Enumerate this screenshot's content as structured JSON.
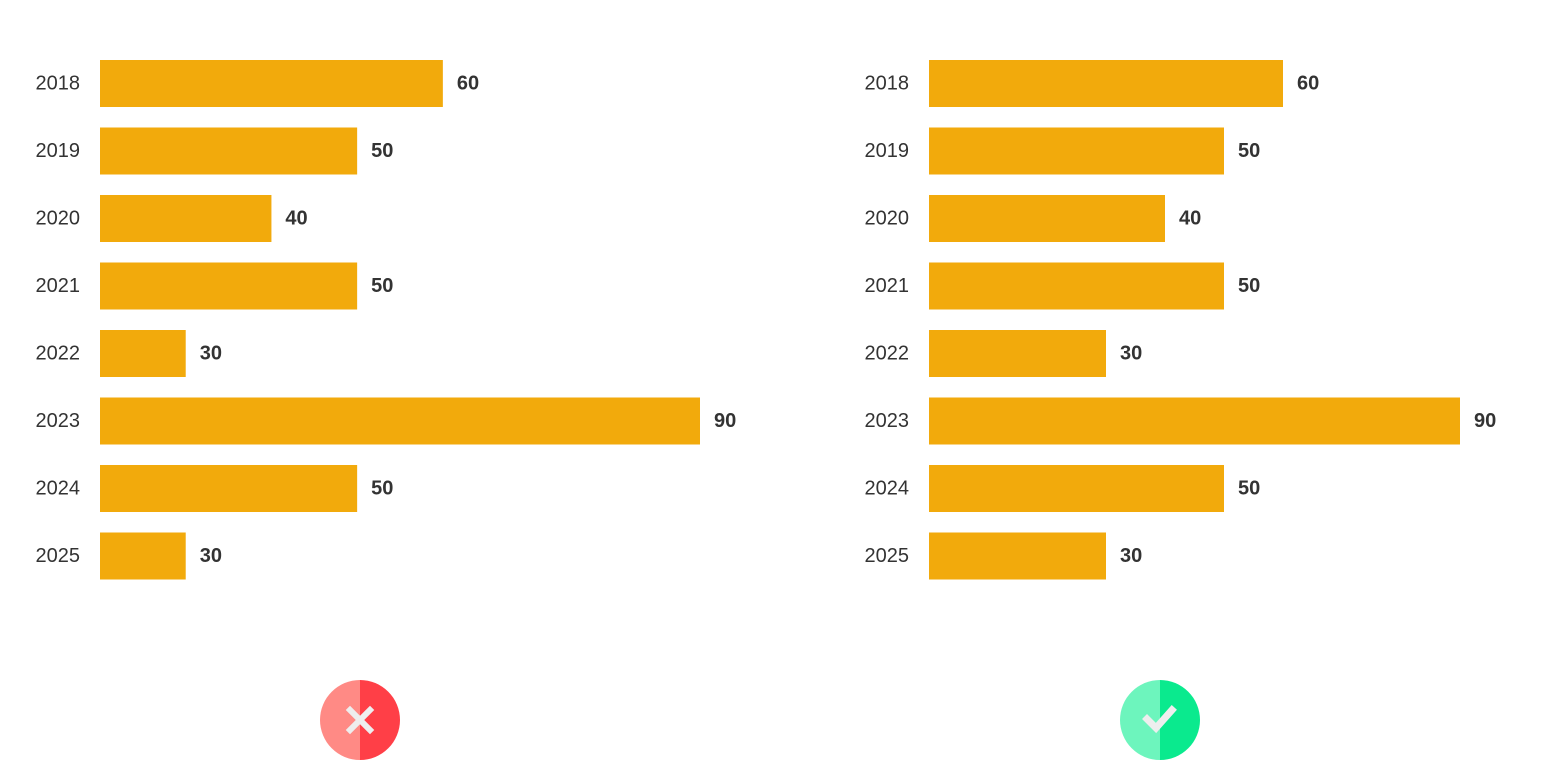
{
  "bar_color": "#f2aa0c",
  "text_color": "#333333",
  "chart_data": [
    {
      "type": "bar",
      "orientation": "horizontal",
      "verdict": "wrong",
      "categories": [
        "2018",
        "2019",
        "2020",
        "2021",
        "2022",
        "2023",
        "2024",
        "2025"
      ],
      "values": [
        60,
        50,
        40,
        50,
        30,
        90,
        50,
        30
      ],
      "xlim": [
        20,
        90
      ],
      "axis_starts_at_zero": false,
      "grid": false,
      "data_labels": true
    },
    {
      "type": "bar",
      "orientation": "horizontal",
      "verdict": "correct",
      "categories": [
        "2018",
        "2019",
        "2020",
        "2021",
        "2022",
        "2023",
        "2024",
        "2025"
      ],
      "values": [
        60,
        50,
        40,
        50,
        30,
        90,
        50,
        30
      ],
      "xlim": [
        0,
        90
      ],
      "axis_starts_at_zero": true,
      "grid": false,
      "data_labels": true
    }
  ],
  "badges": [
    {
      "name": "wrong-badge",
      "icon": "close-icon",
      "color_light": "#ff8a85",
      "color_dark": "#ff3f47"
    },
    {
      "name": "correct-badge",
      "icon": "check-icon",
      "color_light": "#6df5bd",
      "color_dark": "#0aea8e"
    }
  ]
}
